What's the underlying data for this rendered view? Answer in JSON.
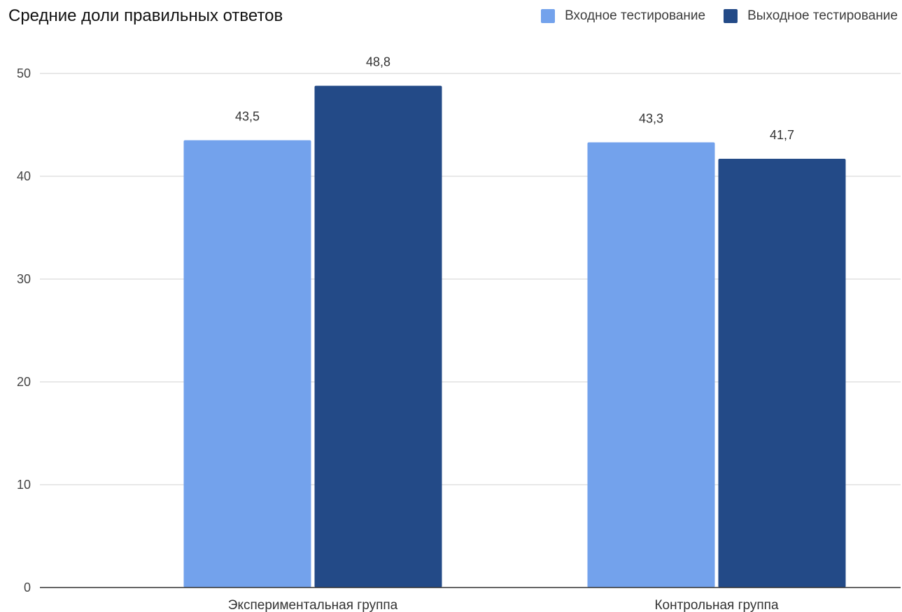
{
  "chart_data": {
    "type": "bar",
    "title": "Средние доли правильных ответов",
    "categories": [
      "Экспериментальная группа",
      "Контрольная группа"
    ],
    "series": [
      {
        "name": "Входное тестирование",
        "values": [
          43.5,
          43.3
        ],
        "labels": [
          "43,5",
          "43,3"
        ],
        "color": "#73a2ec"
      },
      {
        "name": "Выходное тестирование",
        "values": [
          48.8,
          41.7
        ],
        "labels": [
          "48,8",
          "41,7"
        ],
        "color": "#234a87"
      }
    ],
    "xlabel": "",
    "ylabel": "",
    "ylim": [
      0,
      50
    ],
    "yticks": [
      0,
      10,
      20,
      30,
      40,
      50
    ],
    "grid": true,
    "legend_position": "top-right"
  }
}
